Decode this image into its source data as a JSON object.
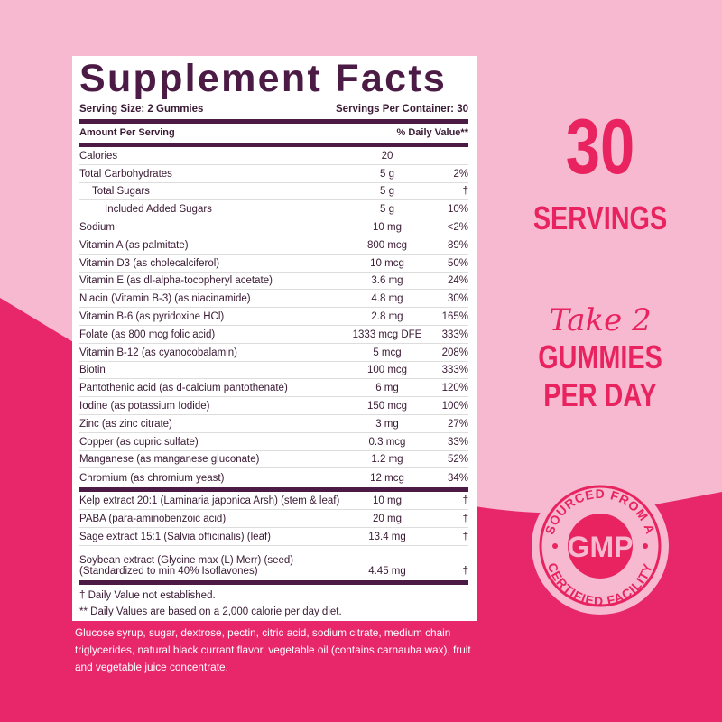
{
  "colors": {
    "bg_light": "#f6b9d0",
    "bg_dark": "#e8276a",
    "accent": "#e8235f",
    "purple": "#4b1a45"
  },
  "facts": {
    "title": "Supplement Facts",
    "serving_size": "Serving Size: 2 Gummies",
    "servings_per_container": "Servings Per Container: 30",
    "amount_per_serving": "Amount Per Serving",
    "daily_value_header": "% Daily Value**",
    "rows": [
      {
        "name": "Calories",
        "amount": "20",
        "dv": ""
      },
      {
        "name": "Total Carbohydrates",
        "amount": "5 g",
        "dv": "2%"
      },
      {
        "name": "Total Sugars",
        "amount": "5 g",
        "dv": "†",
        "indent": 1
      },
      {
        "name": "Included Added Sugars",
        "amount": "5 g",
        "dv": "10%",
        "indent": 2
      },
      {
        "name": "Sodium",
        "amount": "10 mg",
        "dv": "<2%"
      },
      {
        "name": "Vitamin A (as palmitate)",
        "amount": "800 mcg",
        "dv": "89%"
      },
      {
        "name": "Vitamin D3 (as cholecalciferol)",
        "amount": "10 mcg",
        "dv": "50%"
      },
      {
        "name": "Vitamin E (as dl-alpha-tocopheryl acetate)",
        "amount": "3.6 mg",
        "dv": "24%"
      },
      {
        "name": "Niacin (Vitamin B-3) (as niacinamide)",
        "amount": "4.8 mg",
        "dv": "30%"
      },
      {
        "name": "Vitamin B-6 (as pyridoxine HCl)",
        "amount": "2.8 mg",
        "dv": "165%"
      },
      {
        "name": "Folate (as 800 mcg folic acid)",
        "amount": "1333 mcg DFE",
        "dv": "333%"
      },
      {
        "name": "Vitamin B-12 (as cyanocobalamin)",
        "amount": "5 mcg",
        "dv": "208%"
      },
      {
        "name": "Biotin",
        "amount": "100 mcg",
        "dv": "333%"
      },
      {
        "name": "Pantothenic acid (as d-calcium pantothenate)",
        "amount": "6 mg",
        "dv": "120%"
      },
      {
        "name": "Iodine (as potassium Iodide)",
        "amount": "150 mcg",
        "dv": "100%"
      },
      {
        "name": "Zinc (as zinc citrate)",
        "amount": "3 mg",
        "dv": "27%"
      },
      {
        "name": "Copper (as cupric sulfate)",
        "amount": "0.3 mcg",
        "dv": "33%"
      },
      {
        "name": "Manganese (as manganese gluconate)",
        "amount": "1.2 mg",
        "dv": "52%"
      },
      {
        "name": "Chromium (as chromium yeast)",
        "amount": "12 mcg",
        "dv": "34%"
      }
    ],
    "other_rows": [
      {
        "name": "Kelp extract 20:1 (Laminaria japonica Arsh) (stem & leaf)",
        "amount": "10 mg",
        "dv": "†"
      },
      {
        "name": "PABA (para-aminobenzoic acid)",
        "amount": "20 mg",
        "dv": "†"
      },
      {
        "name": "Sage extract 15:1 (Salvia officinalis) (leaf)",
        "amount": "13.4 mg",
        "dv": "†"
      },
      {
        "name": "Soybean extract (Glycine max (L) Merr) (seed)",
        "name2": "(Standardized to min 40% Isoflavones)",
        "amount": "4.45 mg",
        "dv": "†"
      }
    ],
    "footnote1": "† Daily Value not established.",
    "footnote2": "** Daily Values are based on a 2,000 calorie per day diet."
  },
  "ingredients": "Glucose syrup, sugar, dextrose, pectin, citric acid, sodium citrate, medium chain triglycerides, natural black currant flavor, vegetable oil (contains carnauba wax), fruit and vegetable juice concentrate.",
  "side": {
    "servings_number": "30",
    "servings_label": "SERVINGS",
    "take": "Take 2",
    "gummies": "GUMMIES",
    "per_day": "PER DAY"
  },
  "badge": {
    "top_text": "SOURCED FROM A",
    "center": "GMP",
    "bottom_text": "CERTIFIED FACILITY"
  }
}
